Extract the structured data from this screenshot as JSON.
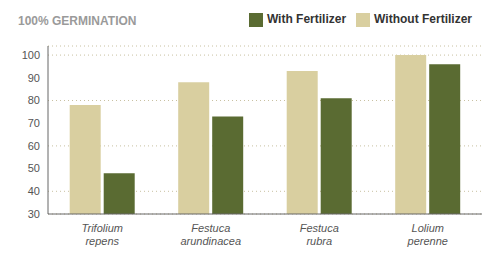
{
  "chart_data": {
    "type": "bar",
    "title": "100% GERMINATION",
    "categories": [
      "Trifolium\nrepens",
      "Festuca\narundinacea",
      "Festuca\nrubra",
      "Lolium\nperenne"
    ],
    "series": [
      {
        "name": "Without Fertilizer",
        "color": "#d9cfa0",
        "values": [
          78,
          88,
          93,
          100
        ]
      },
      {
        "name": "With Fertilizer",
        "color": "#5a6b32",
        "values": [
          48,
          73,
          81,
          96
        ]
      }
    ],
    "ylim": [
      30,
      104
    ],
    "yticks": [
      30,
      40,
      50,
      60,
      70,
      80,
      90,
      100
    ],
    "grid": true,
    "legend": "upper right"
  }
}
